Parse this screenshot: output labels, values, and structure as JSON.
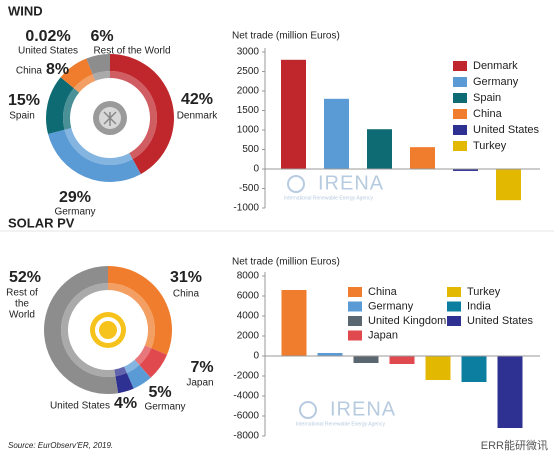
{
  "chart_data": [
    {
      "type": "pie",
      "title": "WIND",
      "categories": [
        "Denmark",
        "Germany",
        "Spain",
        "China",
        "United States",
        "Rest of the World"
      ],
      "values": [
        42,
        29,
        15,
        8,
        0.02,
        6
      ],
      "value_labels": [
        "42%",
        "29%",
        "15%",
        "8%",
        "0.02%",
        "6%"
      ],
      "colors": [
        "#c0272d",
        "#5b9bd5",
        "#0e6b74",
        "#ef7d2d",
        "#2e3192",
        "#8d8d8d"
      ]
    },
    {
      "type": "bar",
      "ylabel": "Net trade (million Euros)",
      "categories": [
        "Denmark",
        "Germany",
        "Spain",
        "China",
        "United States",
        "Turkey"
      ],
      "values": [
        2800,
        1800,
        1020,
        560,
        -50,
        -800
      ],
      "colors": [
        "#c0272d",
        "#5b9bd5",
        "#0e6b74",
        "#ef7d2d",
        "#2e3192",
        "#e3b800"
      ],
      "ylim": [
        -1000,
        3000
      ],
      "yticks": [
        3000,
        2500,
        2000,
        1500,
        1000,
        500,
        0,
        -500,
        -1000
      ],
      "watermark": "IRENA",
      "watermark_note": "International Renewable Energy Agency"
    },
    {
      "type": "pie",
      "title": "SOLAR PV",
      "categories": [
        "China",
        "Japan",
        "Germany",
        "United States",
        "Rest of the World"
      ],
      "values": [
        31,
        7,
        5,
        4,
        52
      ],
      "value_labels": [
        "31%",
        "7%",
        "5%",
        "4%",
        "52%"
      ],
      "colors": [
        "#ef7d2d",
        "#e04a4f",
        "#5b9bd5",
        "#2e3192",
        "#8d8d8d"
      ]
    },
    {
      "type": "bar",
      "ylabel": "Net trade (million Euros)",
      "categories": [
        "China",
        "Germany",
        "United Kingdom",
        "Japan",
        "Turkey",
        "India",
        "United States"
      ],
      "values": [
        6600,
        300,
        -700,
        -800,
        -2400,
        -2600,
        -7200
      ],
      "colors": [
        "#ef7d2d",
        "#5b9bd5",
        "#5a6670",
        "#e04a4f",
        "#e3b800",
        "#0c7fa0",
        "#2e3192"
      ],
      "ylim": [
        -8000,
        8000
      ],
      "yticks": [
        8000,
        6000,
        4000,
        2000,
        0,
        -2000,
        -4000,
        -6000,
        -8000
      ],
      "watermark": "IRENA",
      "watermark_note": "International Renewable Energy Agency"
    }
  ],
  "source": "Source: EurObserv'ER, 2019.",
  "wechat": "ERR能研微讯"
}
